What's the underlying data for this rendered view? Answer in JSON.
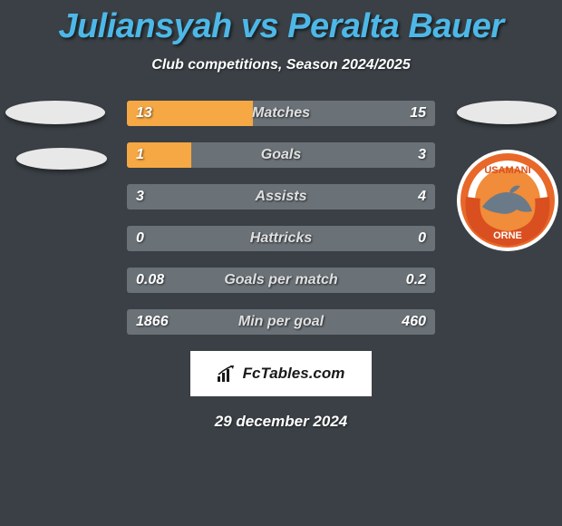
{
  "title": "Juliansyah vs Peralta Bauer",
  "subtitle": "Club competitions, Season 2024/2025",
  "date": "29 december 2024",
  "fctables_label": "FcTables.com",
  "colors": {
    "background": "#3a4045",
    "title_color": "#4db8e8",
    "bar_track": "#6a7278",
    "bar_left": "#f5a843",
    "bar_right": "#828a90",
    "text": "#ffffff"
  },
  "badge": {
    "outer": "#ffffff",
    "ring": "#e8682a",
    "banner": "#d94f1f",
    "inner": "#f08c3a",
    "dolphin": "#6a7a88",
    "text_top": "USAMANI",
    "text_bottom": "ORNE"
  },
  "stats": [
    {
      "label": "Matches",
      "left_val": "13",
      "right_val": "15",
      "left_pct": 41,
      "right_pct": 0
    },
    {
      "label": "Goals",
      "left_val": "1",
      "right_val": "3",
      "left_pct": 21,
      "right_pct": 0
    },
    {
      "label": "Assists",
      "left_val": "3",
      "right_val": "4",
      "left_pct": 0,
      "right_pct": 0
    },
    {
      "label": "Hattricks",
      "left_val": "0",
      "right_val": "0",
      "left_pct": 0,
      "right_pct": 0
    },
    {
      "label": "Goals per match",
      "left_val": "0.08",
      "right_val": "0.2",
      "left_pct": 0,
      "right_pct": 0
    },
    {
      "label": "Min per goal",
      "left_val": "1866",
      "right_val": "460",
      "left_pct": 0,
      "right_pct": 0
    }
  ]
}
